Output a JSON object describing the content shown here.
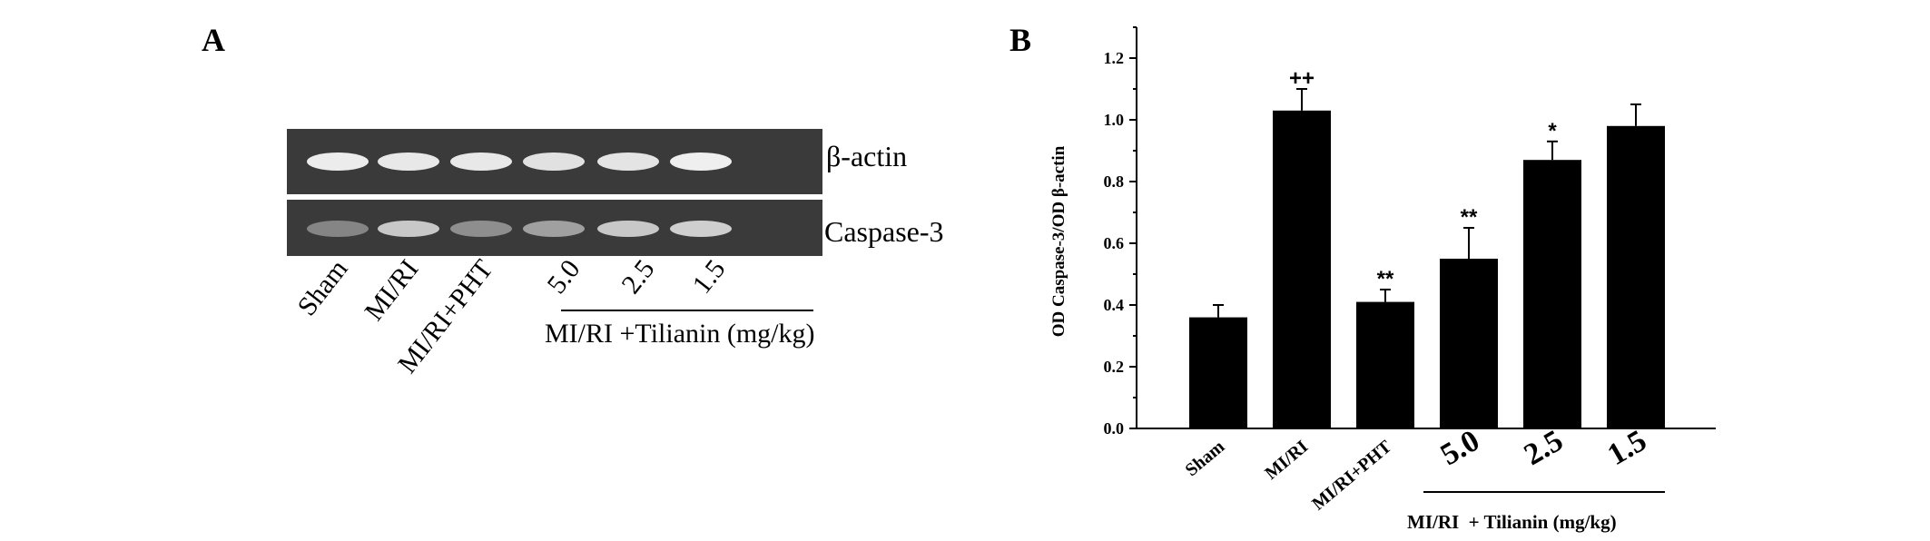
{
  "panel_a": {
    "letter": "A",
    "band_labels": [
      "β-actin",
      "Caspase-3"
    ],
    "lanes": [
      "Sham",
      "MI/RI",
      "MI/RI+PHT",
      "5.0",
      "2.5",
      "1.5"
    ],
    "group_label": "MI/RI +Tilianin (mg/kg)",
    "band_intensity": {
      "beta_actin": [
        0.92,
        0.9,
        0.9,
        0.86,
        0.88,
        0.94
      ],
      "caspase_3": [
        0.35,
        0.72,
        0.4,
        0.5,
        0.72,
        0.76
      ]
    }
  },
  "panel_b": {
    "letter": "B",
    "group_label": "MI/RI  + Tilianin (mg/kg)"
  },
  "chart_data": {
    "type": "bar",
    "title": "",
    "xlabel": "",
    "ylabel": "OD Caspase-3/OD β-actin",
    "categories": [
      "Sham",
      "MI/RI",
      "MI/RI+PHT",
      "5.0",
      "2.5",
      "1.5"
    ],
    "values": [
      0.36,
      1.03,
      0.41,
      0.55,
      0.87,
      0.98
    ],
    "errors": [
      0.04,
      0.07,
      0.04,
      0.1,
      0.06,
      0.07
    ],
    "annotations": [
      "",
      "++",
      "**",
      "**",
      "*",
      ""
    ],
    "ylim": [
      0.0,
      1.3
    ],
    "yticks": [
      "0.0",
      "0.2",
      "0.4",
      "0.6",
      "0.8",
      "1.0",
      "1.2"
    ],
    "bar_color": "#000000",
    "grid": false,
    "legend": "none"
  }
}
